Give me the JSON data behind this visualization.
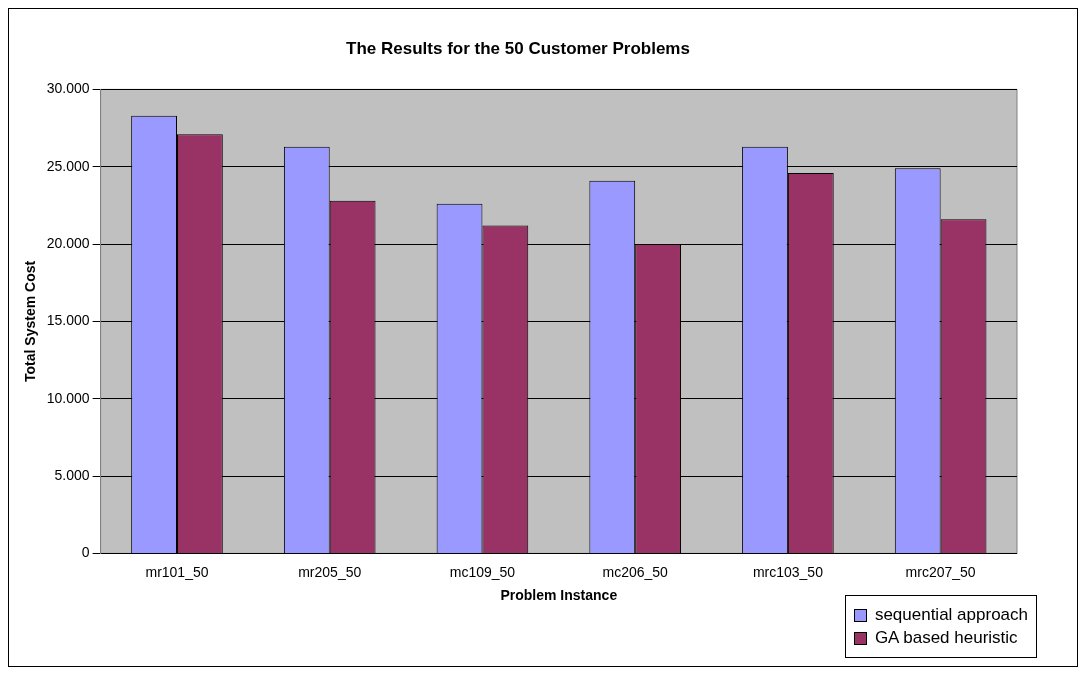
{
  "chart_data": {
    "type": "bar",
    "title": "The Results for the 50 Customer Problems",
    "xlabel": "Problem Instance",
    "ylabel": "Total System Cost",
    "categories": [
      "mr101_50",
      "mr205_50",
      "mc109_50",
      "mc206_50",
      "mrc103_50",
      "mrc207_50"
    ],
    "series": [
      {
        "name": "sequential approach",
        "color": "#9999ff",
        "values": [
          28300,
          26300,
          22600,
          24100,
          26300,
          24900
        ]
      },
      {
        "name": "GA based heuristic",
        "color": "#993366",
        "values": [
          27100,
          22800,
          21200,
          20000,
          24600,
          21600
        ]
      }
    ],
    "ylim": [
      0,
      30000
    ],
    "yticks": [
      0,
      {
        "value": 5000,
        "label": "5.000"
      },
      {
        "value": 10000,
        "label": "10.000"
      },
      {
        "value": 15000,
        "label": "15.000"
      },
      {
        "value": 20000,
        "label": "20.000"
      },
      {
        "value": 25000,
        "label": "25.000"
      },
      {
        "value": 30000,
        "label": "30.000"
      }
    ],
    "grid": "y",
    "legend": "bottom right"
  }
}
